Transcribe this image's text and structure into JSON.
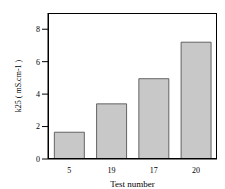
{
  "chart_data": {
    "type": "bar",
    "categories": [
      "5",
      "19",
      "17",
      "20"
    ],
    "values": [
      1.65,
      3.4,
      4.95,
      7.2
    ],
    "color": "#c8c8c8",
    "ylim": [
      0,
      9
    ],
    "yticks": [
      0,
      2,
      4,
      6,
      8
    ],
    "x_label": "Test number",
    "y_label": "k25 ( mS.cm-1 )",
    "grid": false
  }
}
